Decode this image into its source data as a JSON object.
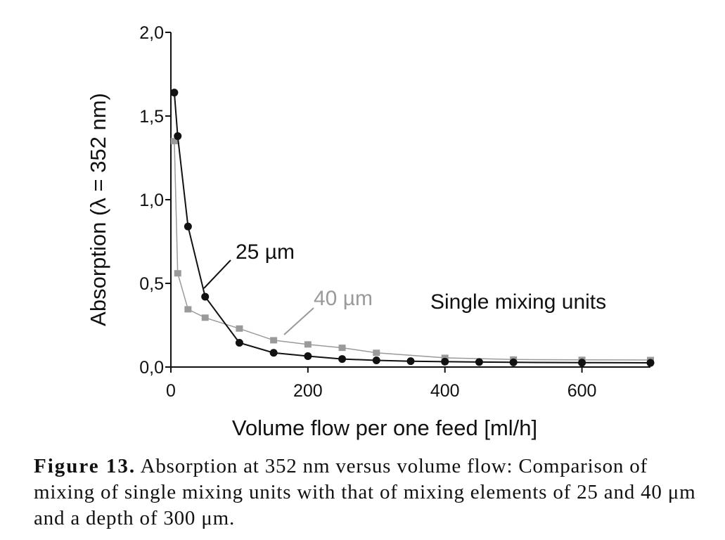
{
  "chart_data": {
    "type": "line",
    "xlabel": "Volume flow per one feed [ml/h]",
    "ylabel": "Absorption (λ = 352 nm)",
    "xlim": [
      0,
      700
    ],
    "ylim": [
      0,
      2.0
    ],
    "x_ticks": [
      {
        "value": 0,
        "label": "0"
      },
      {
        "value": 200,
        "label": "200"
      },
      {
        "value": 400,
        "label": "400"
      },
      {
        "value": 600,
        "label": "600"
      }
    ],
    "y_ticks": [
      {
        "value": 0,
        "label": "0,0"
      },
      {
        "value": 0.5,
        "label": "0,5"
      },
      {
        "value": 1.0,
        "label": "1,0"
      },
      {
        "value": 1.5,
        "label": "1,5"
      },
      {
        "value": 2.0,
        "label": "2,0"
      }
    ],
    "grid": false,
    "series": [
      {
        "name": "25 µm",
        "marker": "circle",
        "color": "#111111",
        "x": [
          5,
          10,
          25,
          50,
          100,
          150,
          200,
          250,
          300,
          350,
          400,
          450,
          500,
          600,
          700
        ],
        "y": [
          1.64,
          1.38,
          0.84,
          0.42,
          0.145,
          0.085,
          0.065,
          0.048,
          0.04,
          0.035,
          0.032,
          0.03,
          0.028,
          0.026,
          0.025
        ]
      },
      {
        "name": "40 µm",
        "marker": "square",
        "color": "#9a9a9a",
        "x": [
          5,
          10,
          25,
          50,
          100,
          150,
          200,
          250,
          300,
          400,
          500,
          600,
          700
        ],
        "y": [
          1.35,
          0.56,
          0.345,
          0.295,
          0.23,
          0.16,
          0.135,
          0.115,
          0.085,
          0.055,
          0.045,
          0.043,
          0.042
        ]
      }
    ],
    "annotations": {
      "label_25": "25 µm",
      "label_40": "40 µm",
      "note": "Single mixing units"
    }
  },
  "caption": {
    "label": "Figure 13.",
    "text": "Absorption at 352 nm versus volume flow: Comparison of mixing of single mixing units with that of mixing elements of 25 and 40 μm and a depth of 300 μm."
  },
  "colors": {
    "axis": "#111111",
    "series_25": "#111111",
    "series_40": "#9a9a9a"
  }
}
